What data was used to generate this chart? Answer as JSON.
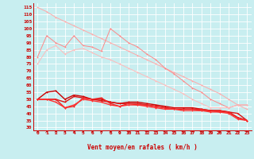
{
  "bg_color": "#c8eef0",
  "grid_color": "#ffffff",
  "xlabel": "Vent moyen/en rafales ( km/h )",
  "xlabel_color": "#cc0000",
  "tick_color": "#cc0000",
  "x": [
    0,
    1,
    2,
    3,
    4,
    5,
    6,
    7,
    8,
    9,
    10,
    11,
    12,
    13,
    14,
    15,
    16,
    17,
    18,
    19,
    20,
    21,
    22,
    23
  ],
  "series": [
    [
      115,
      112,
      108,
      105,
      102,
      99,
      96,
      93,
      90,
      87,
      84,
      81,
      78,
      75,
      72,
      69,
      66,
      63,
      60,
      57,
      54,
      50,
      46,
      43
    ],
    [
      80,
      95,
      90,
      87,
      95,
      88,
      87,
      84,
      100,
      95,
      90,
      87,
      82,
      78,
      72,
      68,
      63,
      58,
      55,
      50,
      47,
      44,
      46,
      46
    ],
    [
      75,
      85,
      88,
      82,
      85,
      86,
      83,
      80,
      78,
      75,
      72,
      69,
      66,
      63,
      60,
      57,
      54,
      50,
      47,
      44,
      44,
      44,
      46,
      46
    ],
    [
      50,
      55,
      56,
      50,
      53,
      52,
      50,
      50,
      48,
      47,
      48,
      48,
      47,
      46,
      45,
      44,
      44,
      44,
      43,
      42,
      42,
      41,
      37,
      35
    ],
    [
      50,
      50,
      50,
      48,
      52,
      51,
      50,
      49,
      48,
      47,
      47,
      47,
      46,
      45,
      44,
      43,
      43,
      43,
      42,
      42,
      41,
      41,
      40,
      35
    ],
    [
      50,
      50,
      50,
      44,
      45,
      51,
      50,
      51,
      47,
      45,
      47,
      46,
      46,
      45,
      44,
      43,
      43,
      43,
      43,
      42,
      42,
      41,
      37,
      35
    ],
    [
      50,
      50,
      48,
      44,
      46,
      50,
      49,
      48,
      46,
      45,
      46,
      46,
      45,
      44,
      43,
      43,
      42,
      42,
      42,
      41,
      41,
      40,
      36,
      35
    ]
  ],
  "ylim": [
    28,
    118
  ],
  "yticks": [
    30,
    35,
    40,
    45,
    50,
    55,
    60,
    65,
    70,
    75,
    80,
    85,
    90,
    95,
    100,
    105,
    110,
    115
  ],
  "series_colors": [
    "#ffaaaa",
    "#ff8888",
    "#ffbbbb",
    "#cc0000",
    "#dd1111",
    "#ee2222",
    "#ff3333"
  ],
  "series_widths": [
    0.7,
    0.7,
    0.7,
    1.0,
    1.0,
    1.0,
    1.0
  ],
  "marker_size": 2.0
}
